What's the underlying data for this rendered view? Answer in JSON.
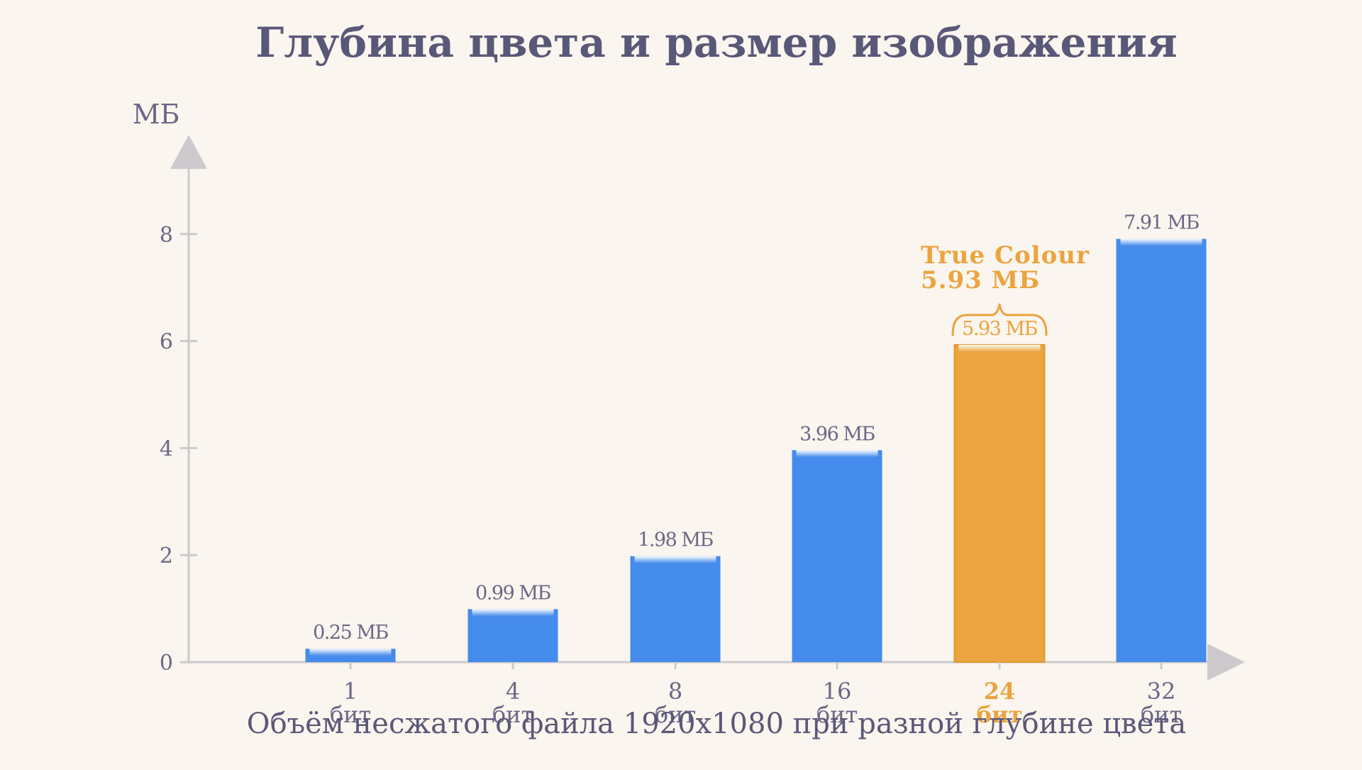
{
  "chart_data": {
    "type": "bar",
    "title": "Глубина цвета и размер изображения",
    "subtitle": "Объём несжатого файла 1920x1080 при разной глубине цвета",
    "ylabel": "МБ",
    "ylim": [
      0,
      9
    ],
    "yticks": [
      0,
      2,
      4,
      6,
      8
    ],
    "grid": false,
    "categories": [
      "1",
      "4",
      "8",
      "16",
      "24",
      "32"
    ],
    "category_unit": "бит",
    "values": [
      0.25,
      0.99,
      1.98,
      3.96,
      5.93,
      7.91
    ],
    "data_labels": [
      "0.25 МБ",
      "0.99 МБ",
      "1.98 МБ",
      "3.96 МБ",
      "5.93 МБ",
      "7.91 МБ"
    ],
    "highlight_index": 4,
    "annotation": {
      "index": 4,
      "line1": "True Colour",
      "line2": "5.93 МБ"
    }
  },
  "colors": {
    "bar": "#458beb",
    "highlight": "#eba43f",
    "axis": "#cdc9cd",
    "text": "#6a6886",
    "title": "#5a5878"
  }
}
